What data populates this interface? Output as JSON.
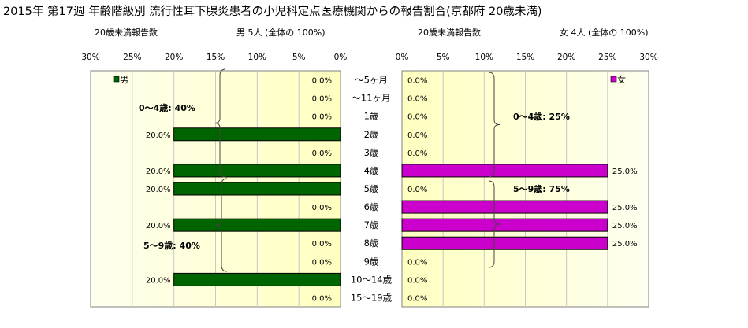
{
  "title": "2015年 第17週 年齢階級別 流行性耳下腺炎患者の小児科定点医療機関からの報告割合(京都府 20歳未満)",
  "male_header": {
    "count_label": "20歳未満報告数",
    "summary_label": "男 5人 (全体の 100%)"
  },
  "female_header": {
    "count_label": "20歳未満報告数",
    "summary_label": "女 4人 (全体の 100%)"
  },
  "colors": {
    "male": "#006400",
    "female": "#cc00cc",
    "plot_gradient_outer": "#fffff0",
    "plot_gradient_inner": "#ffffc0"
  },
  "chart_data": [
    {
      "type": "bar",
      "orientation": "horizontal",
      "direction": "right-to-left",
      "categories": [
        "～5ヶ月",
        "～11ヶ月",
        "1歳",
        "2歳",
        "3歳",
        "4歳",
        "5歳",
        "6歳",
        "7歳",
        "8歳",
        "9歳",
        "10～14歳",
        "15～19歳"
      ],
      "series": [
        {
          "name": "男",
          "values": [
            0,
            0,
            0,
            20,
            0,
            20,
            20,
            0,
            20,
            0,
            0,
            20,
            0
          ]
        }
      ],
      "value_labels": [
        "0.0%",
        "0.0%",
        "0.0%",
        "20.0%",
        "0.0%",
        "20.0%",
        "20.0%",
        "0.0%",
        "20.0%",
        "0.0%",
        "0.0%",
        "20.0%",
        "0.0%"
      ],
      "xlim": [
        0,
        30
      ],
      "x_ticks": [
        "30%",
        "25%",
        "20%",
        "15%",
        "10%",
        "5%",
        "0%"
      ],
      "legend": "top-left",
      "grid": true,
      "annotations": [
        "0～4歳: 40%",
        "5～9歳: 40%"
      ]
    },
    {
      "type": "bar",
      "orientation": "horizontal",
      "direction": "left-to-right",
      "categories": [
        "～5ヶ月",
        "～11ヶ月",
        "1歳",
        "2歳",
        "3歳",
        "4歳",
        "5歳",
        "6歳",
        "7歳",
        "8歳",
        "9歳",
        "10～14歳",
        "15～19歳"
      ],
      "series": [
        {
          "name": "女",
          "values": [
            0,
            0,
            0,
            0,
            0,
            25,
            0,
            25,
            25,
            25,
            0,
            0,
            0
          ]
        }
      ],
      "value_labels": [
        "0.0%",
        "0.0%",
        "0.0%",
        "0.0%",
        "0.0%",
        "25.0%",
        "0.0%",
        "25.0%",
        "25.0%",
        "25.0%",
        "0.0%",
        "0.0%",
        "0.0%"
      ],
      "xlim": [
        0,
        30
      ],
      "x_ticks": [
        "0%",
        "5%",
        "10%",
        "15%",
        "20%",
        "25%",
        "30%"
      ],
      "legend": "top-right",
      "grid": true,
      "annotations": [
        "0～4歳: 25%",
        "5～9歳: 75%"
      ]
    }
  ]
}
